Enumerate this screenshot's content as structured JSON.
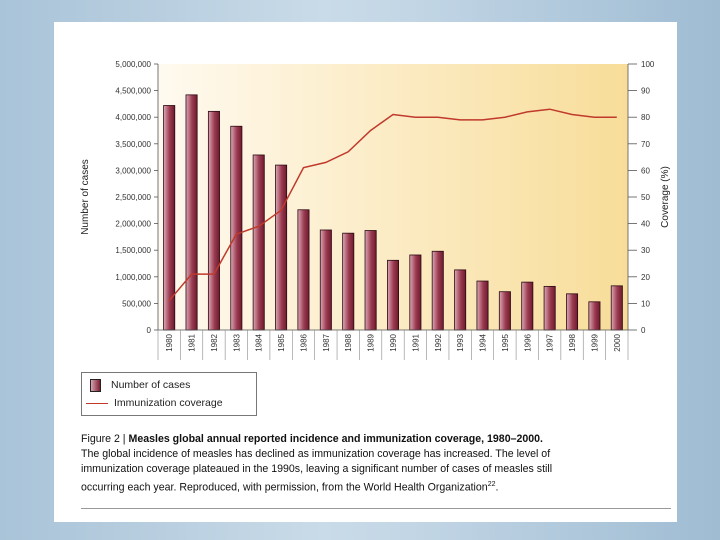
{
  "colors": {
    "bar_dark": "#7a1f33",
    "bar_light": "#d9a4b1",
    "line": "#c0392b",
    "plot_bg_light": "#fffaf0",
    "plot_bg_dark": "#f8dd99"
  },
  "chart_data": {
    "type": "bar",
    "title": "",
    "categories": [
      "1980",
      "1981",
      "1982",
      "1983",
      "1984",
      "1985",
      "1986",
      "1987",
      "1988",
      "1989",
      "1990",
      "1991",
      "1992",
      "1993",
      "1994",
      "1995",
      "1996",
      "1997",
      "1998",
      "1999",
      "2000"
    ],
    "series": [
      {
        "name": "Number of cases",
        "type": "bar",
        "axis": "left",
        "values": [
          4220000,
          4420000,
          4110000,
          3830000,
          3290000,
          3100000,
          2260000,
          1880000,
          1820000,
          1870000,
          1310000,
          1410000,
          1480000,
          1130000,
          920000,
          720000,
          900000,
          820000,
          680000,
          530000,
          830000
        ]
      },
      {
        "name": "Immunization coverage",
        "type": "line",
        "axis": "right",
        "values": [
          11,
          21,
          21,
          36,
          39,
          45,
          61,
          63,
          67,
          75,
          81,
          80,
          80,
          79,
          79,
          80,
          82,
          83,
          81,
          80,
          80
        ]
      }
    ],
    "ylabel": "Number of cases",
    "ylabel_right": "Coverage (%)",
    "ylim": [
      0,
      5000000
    ],
    "ylim_right": [
      0,
      100
    ],
    "yticks": [
      "0",
      "500,000",
      "1,000,000",
      "1,500,000",
      "2,000,000",
      "2,500,000",
      "3,000,000",
      "3,500,000",
      "4,000,000",
      "4,500,000",
      "5,000,000"
    ],
    "yticks_right": [
      "0",
      "10",
      "20",
      "30",
      "40",
      "50",
      "60",
      "70",
      "80",
      "90",
      "100"
    ],
    "legend": [
      "Number of cases",
      "Immunization coverage"
    ],
    "legend_position": "bottom-left"
  },
  "caption": {
    "figure_label": "Figure 2 |",
    "title": "Measles global annual reported incidence and immunization coverage, 1980–2000.",
    "line1": "The global incidence of measles has declined as immunization coverage has increased. The level of",
    "line2": "immunization coverage plateaued in the 1990s, leaving a significant number of cases of measles still",
    "line3": "occurring each year. Reproduced, with permission, from the World Health Organization",
    "reference": "22",
    "end": "."
  }
}
